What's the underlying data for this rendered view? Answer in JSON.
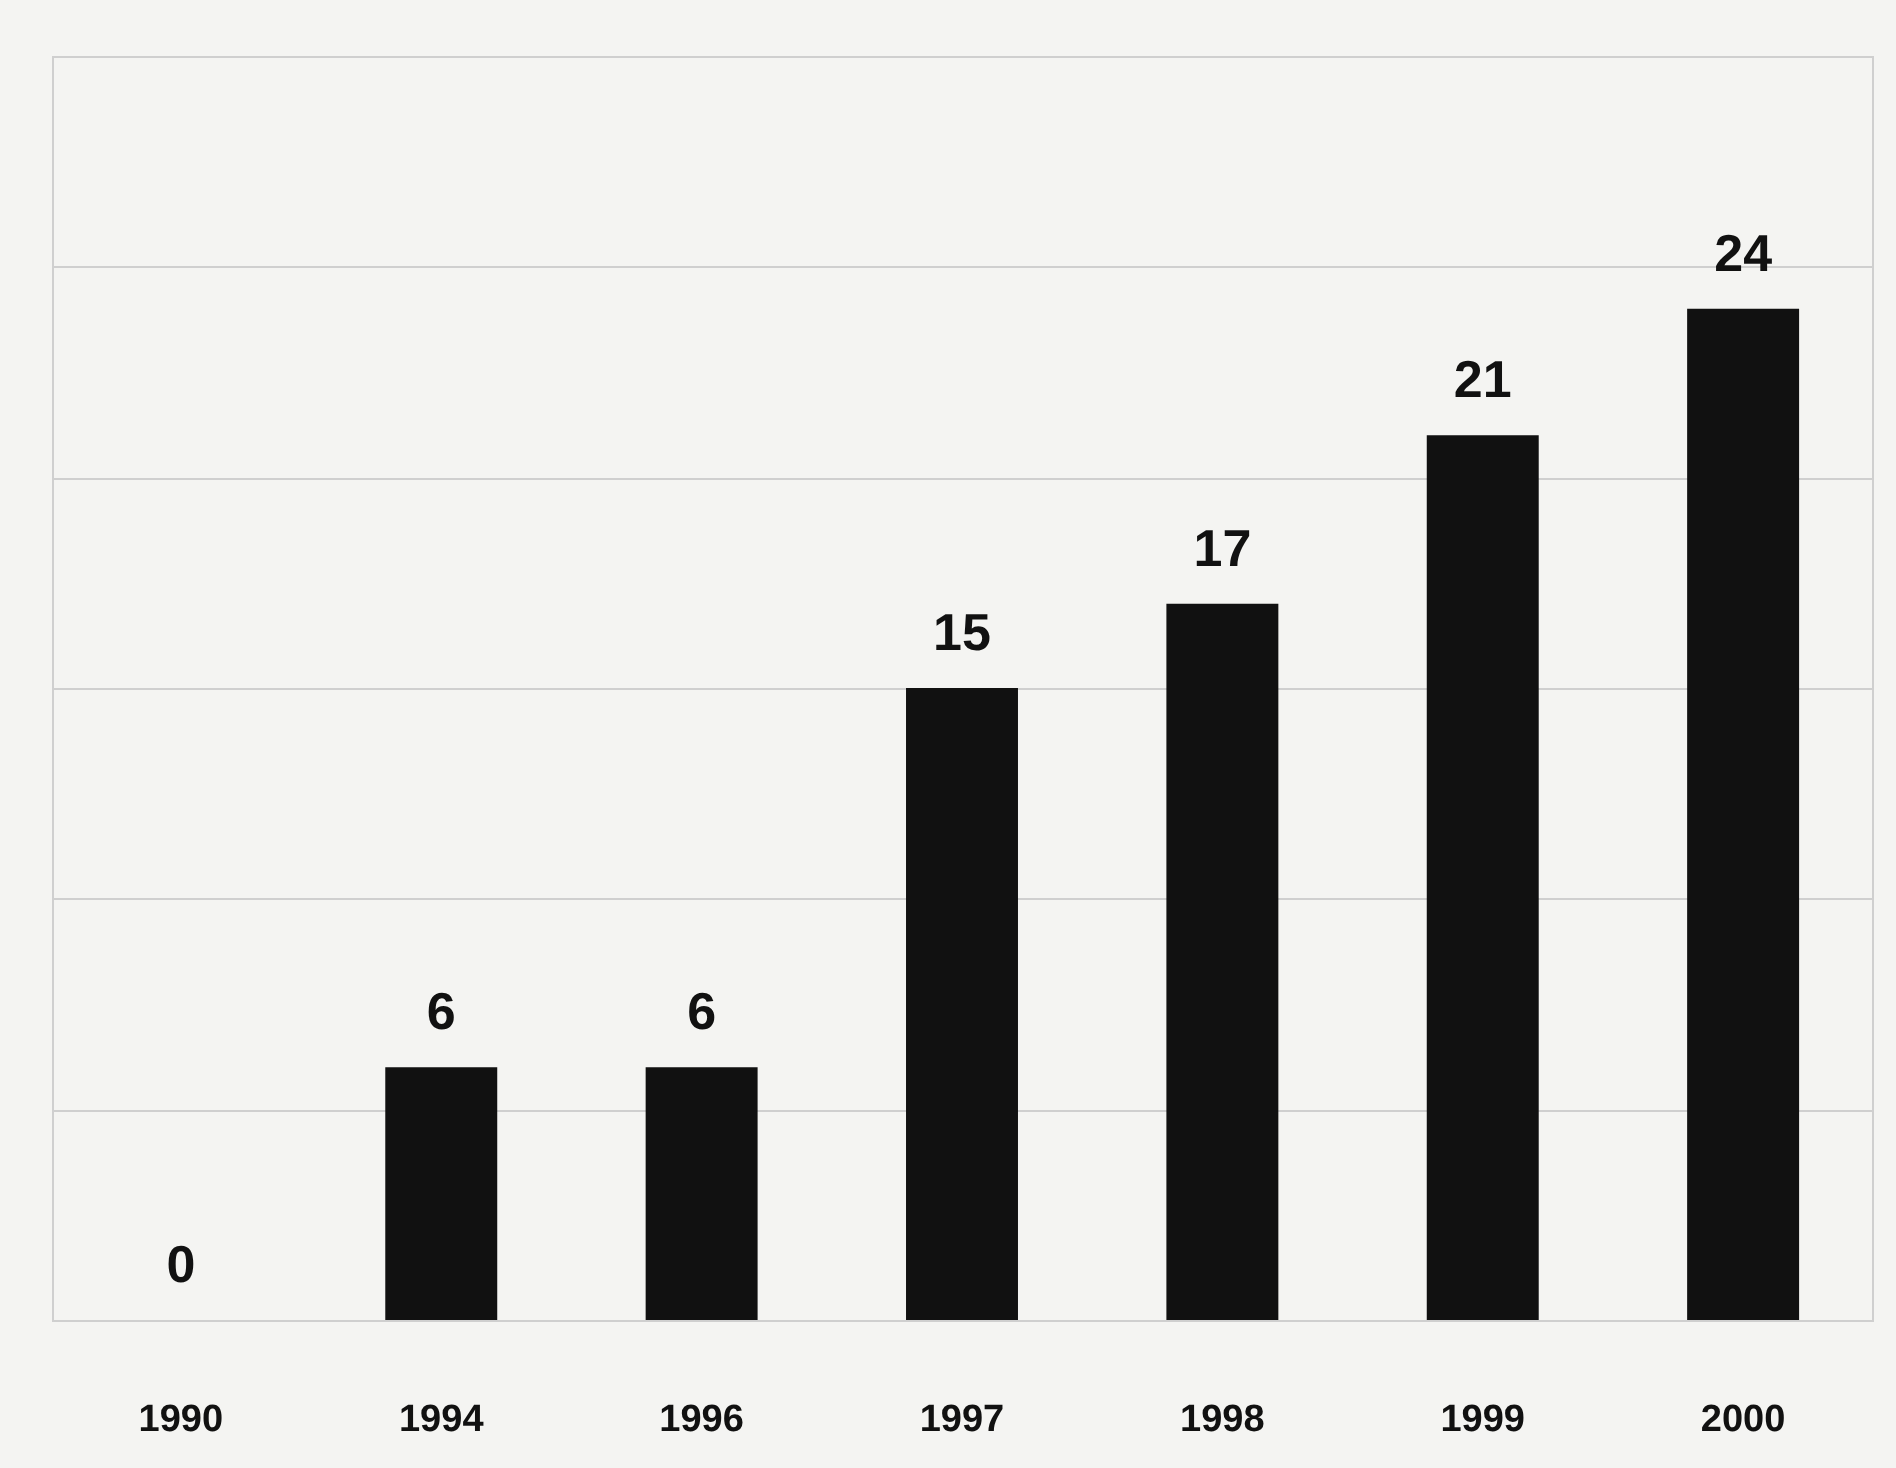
{
  "chart_data": {
    "type": "bar",
    "categories": [
      "1990",
      "1994",
      "1996",
      "1997",
      "1998",
      "1999",
      "2000"
    ],
    "values": [
      0,
      6,
      6,
      15,
      17,
      21,
      24
    ],
    "color": "#111111",
    "ylim": [
      0,
      30
    ],
    "yticks": [
      {
        "value": 0,
        "label": null
      },
      {
        "value": 5,
        "label": null
      },
      {
        "value": 10,
        "label": null
      },
      {
        "value": 15,
        "label": null
      },
      {
        "value": 20,
        "label": null
      },
      {
        "value": 25,
        "label": null
      },
      {
        "value": 30,
        "label": null
      }
    ],
    "tick_labels": "x",
    "grid": "y",
    "data_labels": true
  }
}
